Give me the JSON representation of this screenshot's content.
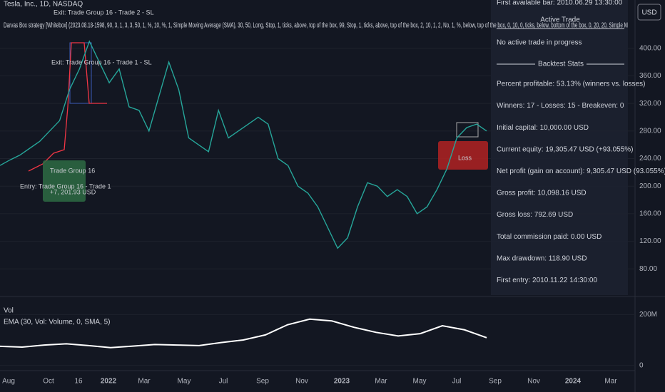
{
  "header": {
    "symbol": "Tesla, Inc., 1D, NASDAQ",
    "strategy": "Darvas Box strategy [Whitebox] (2023.08.18-1598, 90, 3, 1, 3, 3, 50, 1, %, 10, %, 1, Simple Moving Average (SMA), 30, 50, Long, Stop, 1, ticks, above, top of the box, 99, Stop, 1, ticks, above, top of the box, 2, 10, 1, 2, No, 1, %, below, top of the box, 0, 10, 0, ticks, below, bottom of the box, 0, 20, 20, Simple M",
    "currency": "USD"
  },
  "annotations": [
    "Exit: Trade Group 16 - Trade 2 - SL",
    "Exit: Trade Group 16 - Trade 1 - SL",
    "Entry: Trade Group 16 - Trade 1",
    "Trade Group 16",
    "+7, 201.93 USD",
    "Loss"
  ],
  "stats_panel": {
    "first_bar": "First available bar: 2010.06.29 13:30:00",
    "active_title": "Active Trade",
    "active_text": "No active trade in progress",
    "stats_title": "Backtest Stats",
    "lines": [
      "Percent profitable: 53.13% (winners vs. losses)",
      "Winners: 17 - Losses: 15 - Breakeven: 0",
      "Initial capital: 10,000.00 USD",
      "Current equity: 19,305.47 USD (+93.055%)",
      "Net profit (gain on account): 9,305.47 USD (93.055%)",
      "Gross profit: 10,098.16 USD",
      "Gross loss: 792.69 USD",
      "Total commission paid: 0.00 USD",
      "Max drawdown: 118.90 USD",
      "First entry: 2010.11.22 14:30:00"
    ]
  },
  "price_pane": {
    "ylim": [
      40,
      470
    ],
    "yticks": [
      {
        "value": 400,
        "label": "400.00"
      },
      {
        "value": 360,
        "label": "360.00"
      },
      {
        "value": 320,
        "label": "320.00"
      },
      {
        "value": 280,
        "label": "280.00"
      },
      {
        "value": 240,
        "label": "240.00"
      },
      {
        "value": 200,
        "label": "200.00"
      },
      {
        "value": 160,
        "label": "160.00"
      },
      {
        "value": 120,
        "label": "120.00"
      },
      {
        "value": 80,
        "label": "80.00"
      }
    ],
    "values": [
      230,
      238,
      245,
      255,
      265,
      280,
      295,
      340,
      370,
      410,
      380,
      350,
      370,
      315,
      310,
      280,
      330,
      380,
      340,
      270,
      260,
      250,
      310,
      270,
      280,
      290,
      300,
      290,
      240,
      230,
      200,
      190,
      170,
      140,
      110,
      125,
      170,
      205,
      200,
      185,
      195,
      185,
      160,
      170,
      195,
      225,
      270,
      285,
      290,
      280
    ]
  },
  "volume_pane": {
    "label": "Vol",
    "ema_label": "EMA (30, Vol: Volume, 0, SMA, 5)",
    "ylim": [
      -15,
      260
    ],
    "yticks": [
      {
        "value": 200,
        "label": "200M"
      },
      0
    ],
    "ema": [
      75,
      72,
      80,
      85,
      78,
      70,
      76,
      82,
      80,
      78,
      90,
      100,
      120,
      160,
      182,
      175,
      150,
      130,
      116,
      125,
      156,
      140,
      109
    ]
  },
  "time_axis": [
    "Aug",
    "Oct",
    "16",
    "2022",
    "Mar",
    "May",
    "Jul",
    "Sep",
    "Nov",
    "2023",
    "Mar",
    "May",
    "Jul",
    "Sep",
    "Nov",
    "2024",
    "Mar"
  ]
}
